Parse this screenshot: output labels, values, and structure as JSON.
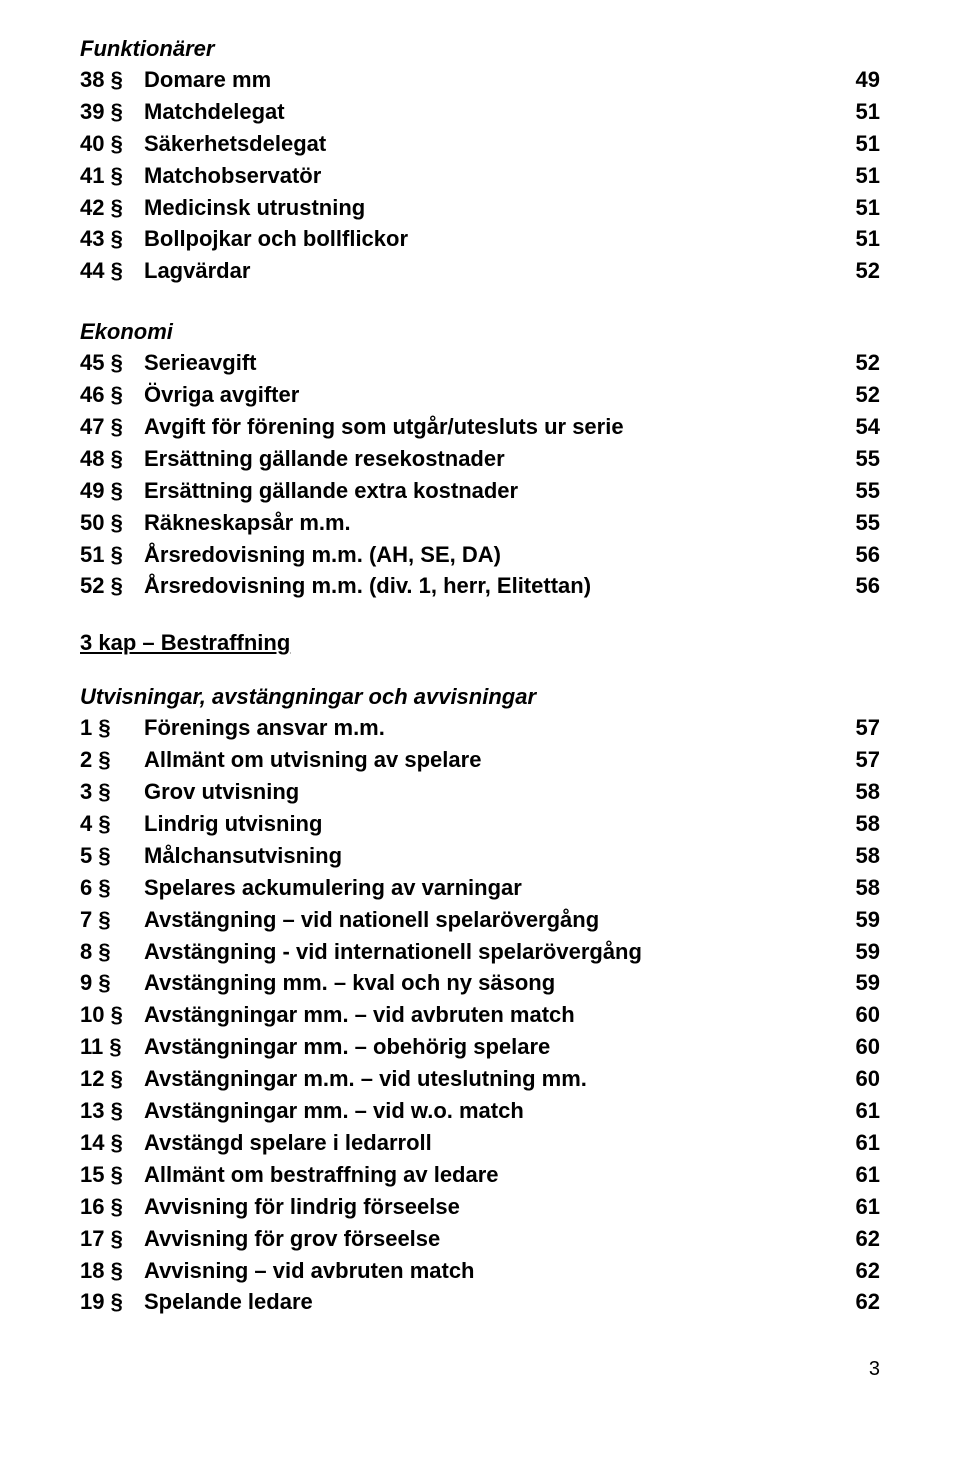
{
  "sections": {
    "funktionarer": {
      "title": "Funktionärer",
      "items": [
        {
          "section": "38 §",
          "title": "Domare mm",
          "page": "49"
        },
        {
          "section": "39 §",
          "title": "Matchdelegat",
          "page": "51"
        },
        {
          "section": "40 §",
          "title": "Säkerhetsdelegat",
          "page": "51"
        },
        {
          "section": "41 §",
          "title": "Matchobservatör",
          "page": "51"
        },
        {
          "section": "42 §",
          "title": "Medicinsk utrustning",
          "page": "51"
        },
        {
          "section": "43 §",
          "title": "Bollpojkar och bollflickor",
          "page": "51"
        },
        {
          "section": "44 §",
          "title": "Lagvärdar",
          "page": "52"
        }
      ]
    },
    "ekonomi": {
      "title": "Ekonomi",
      "items": [
        {
          "section": "45 §",
          "title": "Serieavgift",
          "page": "52"
        },
        {
          "section": "46 §",
          "title": "Övriga avgifter",
          "page": "52"
        },
        {
          "section": "47 §",
          "title": "Avgift för förening som utgår/utesluts ur serie",
          "page": "54"
        },
        {
          "section": "48 §",
          "title": "Ersättning gällande resekostnader",
          "page": "55"
        },
        {
          "section": "49 §",
          "title": "Ersättning gällande extra kostnader",
          "page": "55"
        },
        {
          "section": "50 §",
          "title": "Räkneskapsår m.m.",
          "page": "55"
        },
        {
          "section": "51 §",
          "title": "Årsredovisning m.m. (AH, SE, DA)",
          "page": "56"
        },
        {
          "section": "52 §",
          "title": "Årsredovisning m.m. (div. 1, herr, Elitettan)",
          "page": "56"
        }
      ]
    },
    "kap3": {
      "chapter_title": "3 kap – Bestraffning",
      "subsection_title": "Utvisningar, avstängningar och avvisningar",
      "items": [
        {
          "section": "1 §",
          "title": "Förenings ansvar m.m.",
          "page": "57"
        },
        {
          "section": "2 §",
          "title": "Allmänt om utvisning av spelare",
          "page": "57"
        },
        {
          "section": "3 §",
          "title": "Grov utvisning",
          "page": "58"
        },
        {
          "section": "4 §",
          "title": "Lindrig utvisning",
          "page": "58"
        },
        {
          "section": "5 §",
          "title": "Målchansutvisning",
          "page": "58"
        },
        {
          "section": "6 §",
          "title": "Spelares ackumulering av varningar",
          "page": "58"
        },
        {
          "section": "7 §",
          "title": "Avstängning – vid nationell spelarövergång",
          "page": "59"
        },
        {
          "section": "8 §",
          "title": "Avstängning - vid internationell spelarövergång",
          "page": "59"
        },
        {
          "section": "9 §",
          "title": "Avstängning mm. – kval och ny säsong",
          "page": "59"
        },
        {
          "section": "10 §",
          "title": "Avstängningar mm. – vid avbruten match",
          "page": "60"
        },
        {
          "section": "11 §",
          "title": "Avstängningar mm. – obehörig spelare",
          "page": "60"
        },
        {
          "section": "12 §",
          "title": "Avstängningar m.m. – vid uteslutning mm.",
          "page": "60"
        },
        {
          "section": "13 §",
          "title": "Avstängningar mm. – vid w.o. match",
          "page": "61"
        },
        {
          "section": "14 §",
          "title": "Avstängd spelare i ledarroll",
          "page": "61"
        },
        {
          "section": "15 §",
          "title": "Allmänt om bestraffning av ledare",
          "page": "61"
        },
        {
          "section": "16 §",
          "title": "Avvisning för lindrig förseelse",
          "page": "61"
        },
        {
          "section": "17 §",
          "title": "Avvisning för grov förseelse",
          "page": "62"
        },
        {
          "section": "18 §",
          "title": "Avvisning – vid avbruten match",
          "page": "62"
        },
        {
          "section": "19 §",
          "title": "Spelande ledare",
          "page": "62"
        }
      ]
    }
  },
  "page_number": "3"
}
